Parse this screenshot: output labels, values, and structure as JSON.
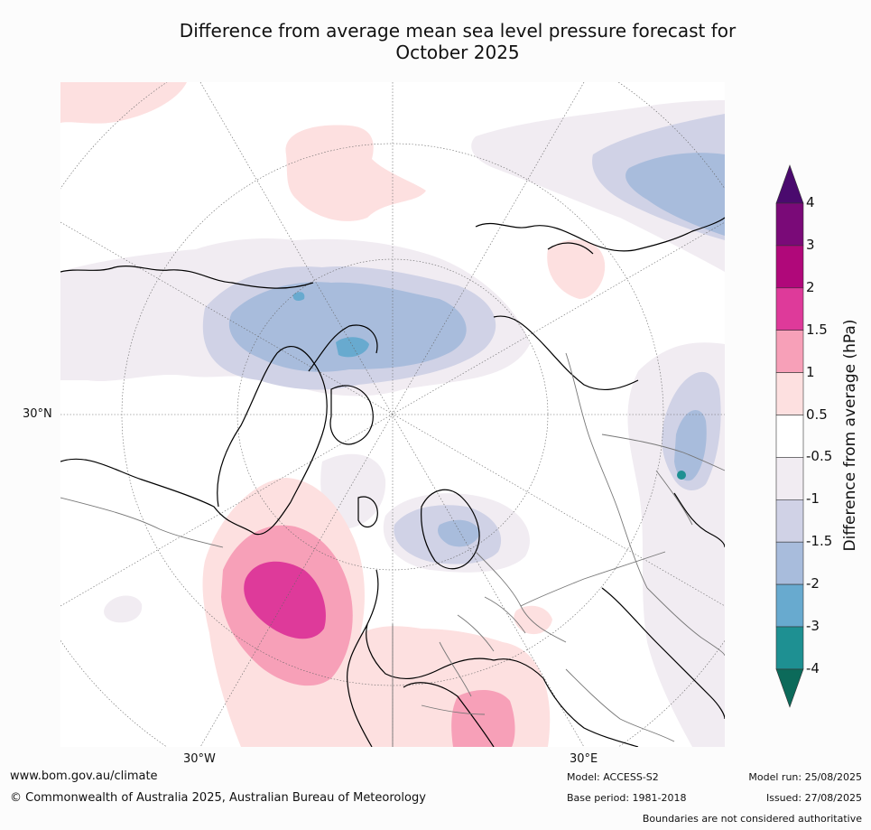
{
  "title_line1": "Difference from average mean sea level pressure forecast for",
  "title_line2": "October 2025",
  "axis_labels": {
    "lat_30n": "30°N",
    "lon_30w": "30°W",
    "lon_30e": "30°E"
  },
  "colorbar": {
    "title": "Difference from average (hPa)",
    "levels": [
      "4",
      "3",
      "2",
      "1.5",
      "1",
      "0.5",
      "-0.5",
      "-1",
      "-1.5",
      "-2",
      "-3",
      "-4"
    ],
    "colors": [
      "#4a0a6e",
      "#7a0a78",
      "#b0087a",
      "#de3a9a",
      "#f7a0b8",
      "#fde0e0",
      "#ffffff",
      "#f1ecf2",
      "#d0d2e6",
      "#a8bcdc",
      "#68aacf",
      "#1e9092",
      "#0c6a5a"
    ],
    "extend": "both"
  },
  "colors": {
    "land_outline": "#000000",
    "border": "#777777",
    "graticule": "#666666",
    "ocean": "#ffffff"
  },
  "footer": {
    "website": "www.bom.gov.au/climate",
    "copyright": "© Commonwealth of Australia 2025, Australian Bureau of Meteorology",
    "model": "Model: ACCESS-S2",
    "base_period": "Base period: 1981-2018",
    "model_run": "Model run: 25/08/2025",
    "issued": "Issued: 27/08/2025",
    "disclaimer": "Boundaries are not considered authoritative"
  }
}
